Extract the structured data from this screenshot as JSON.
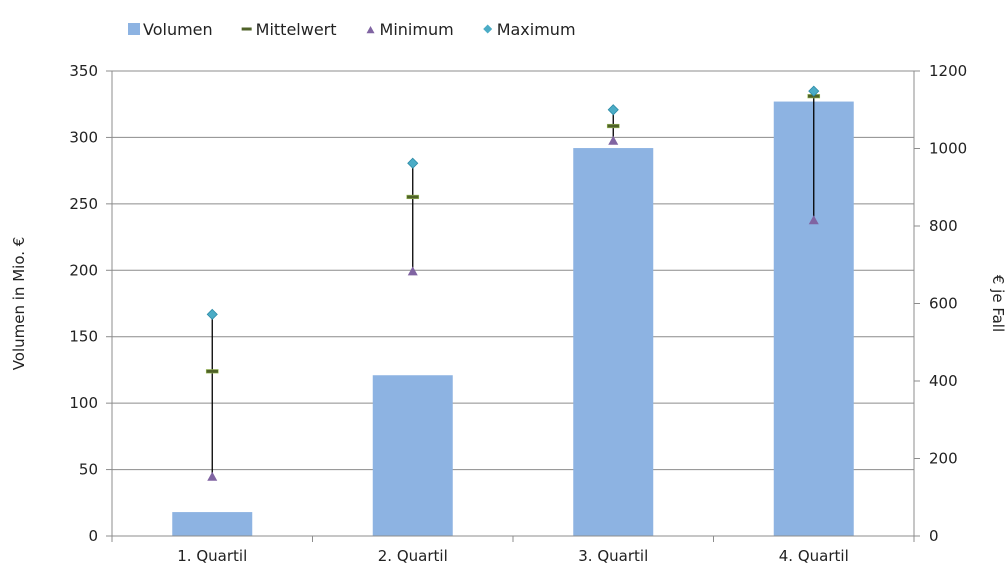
{
  "chart_data": {
    "type": "bar",
    "categories": [
      "1. Quartil",
      "2. Quartil",
      "3. Quartil",
      "4. Quartil"
    ],
    "y_label_left": "Volumen in Mio. €",
    "y_label_right": "€ je Fall",
    "ylim_left": [
      0,
      350
    ],
    "yticks_left": [
      "0",
      "50",
      "100",
      "150",
      "200",
      "250",
      "300",
      "350"
    ],
    "ylim_right": [
      0,
      1200
    ],
    "yticks_right": [
      "0",
      "200",
      "400",
      "600",
      "800",
      "1000",
      "1200"
    ],
    "grid": true,
    "legend_position": "top",
    "series": [
      {
        "name": "Volumen",
        "axis": "left",
        "kind": "bar",
        "color": "#8db3e2",
        "values": [
          18,
          121,
          292,
          327
        ]
      },
      {
        "name": "Mittelwert",
        "axis": "right",
        "kind": "dash-marker",
        "color": "#4f6228",
        "values": [
          425,
          875,
          1058,
          1135
        ]
      },
      {
        "name": "Minimum",
        "axis": "right",
        "kind": "triangle-marker",
        "color": "#8064a2",
        "values": [
          153,
          683,
          1020,
          815
        ]
      },
      {
        "name": "Maximum",
        "axis": "right",
        "kind": "diamond-marker",
        "color": "#4bacc6",
        "values": [
          572,
          962,
          1100,
          1148
        ]
      }
    ]
  }
}
